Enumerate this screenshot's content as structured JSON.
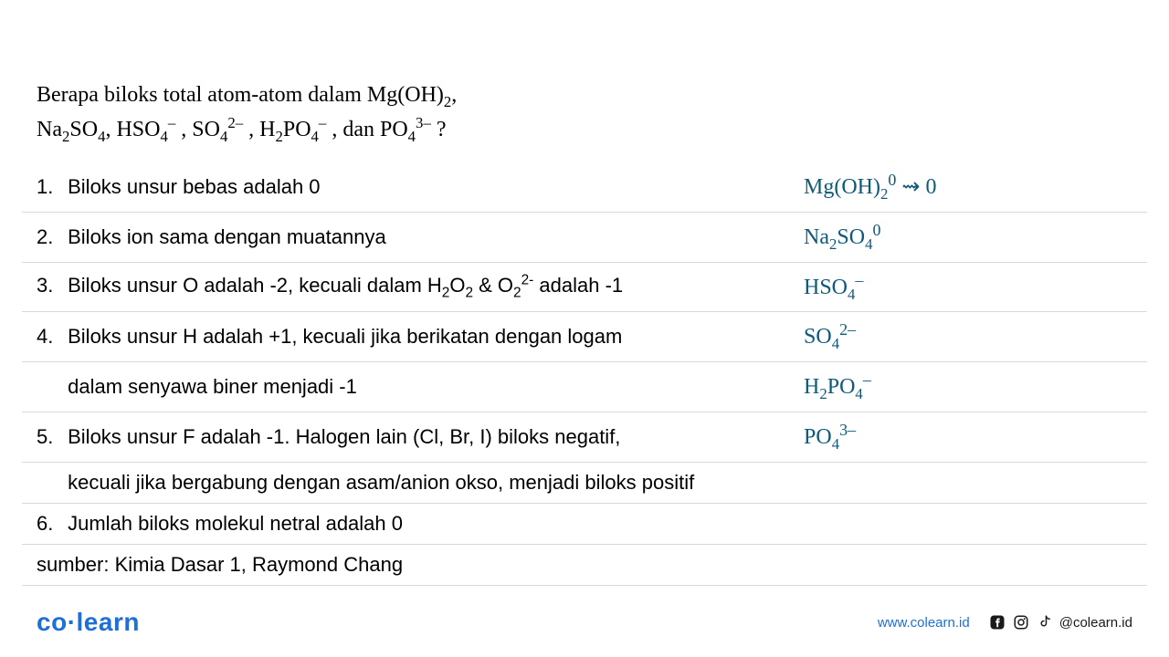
{
  "question": {
    "line1_html": "Berapa biloks total atom-atom dalam Mg(OH)<sub>2</sub>,",
    "line2_html": "Na<sub>2</sub>SO<sub>4</sub>, HSO<sub>4</sub><sup>–</sup> , SO<sub>4</sub><sup>2–</sup> , H<sub>2</sub>PO<sub>4</sub><sup>–</sup> , dan PO<sub>4</sub><sup>3–</sup> ?"
  },
  "rules": [
    {
      "num": "1.",
      "text_html": "Biloks unsur bebas adalah 0",
      "hand_html": "Mg(OH)<sub>2</sub><sup>0</sup> ⇝ 0"
    },
    {
      "num": "2.",
      "text_html": "Biloks ion sama dengan muatannya",
      "hand_html": "Na<sub>2</sub>SO<sub>4</sub><sup>0</sup>"
    },
    {
      "num": "3.",
      "text_html": "Biloks unsur O adalah -2, kecuali dalam H<sub>2</sub>O<sub>2</sub> &amp; O<sub>2</sub><sup>2-</sup> adalah -1",
      "hand_html": "HSO<sub>4</sub><sup>–</sup>"
    },
    {
      "num": "4.",
      "text_html": "Biloks unsur H adalah +1, kecuali jika berikatan dengan logam",
      "hand_html": "SO<sub>4</sub><sup>2–</sup>"
    },
    {
      "num": "",
      "text_html": "dalam senyawa biner menjadi -1",
      "hand_html": "H<sub>2</sub>PO<sub>4</sub><sup>–</sup>"
    },
    {
      "num": "5.",
      "text_html": "Biloks unsur F adalah -1. Halogen lain (Cl, Br, I) biloks negatif,",
      "hand_html": "PO<sub>4</sub><sup>3–</sup>"
    },
    {
      "num": "",
      "text_html": "kecuali jika bergabung dengan asam/anion okso, menjadi biloks positif",
      "hand_html": ""
    },
    {
      "num": "6.",
      "text_html": "Jumlah biloks molekul netral adalah 0",
      "hand_html": ""
    }
  ],
  "source": "sumber: Kimia Dasar 1, Raymond Chang",
  "footer": {
    "logo_left": "co",
    "logo_right": "learn",
    "url": "www.colearn.id",
    "handle": "@colearn.id"
  },
  "colors": {
    "hand": "#0f5a7a",
    "brand": "#1e6fd6",
    "border": "#d8d8d8",
    "text": "#000000",
    "bg": "#ffffff"
  }
}
